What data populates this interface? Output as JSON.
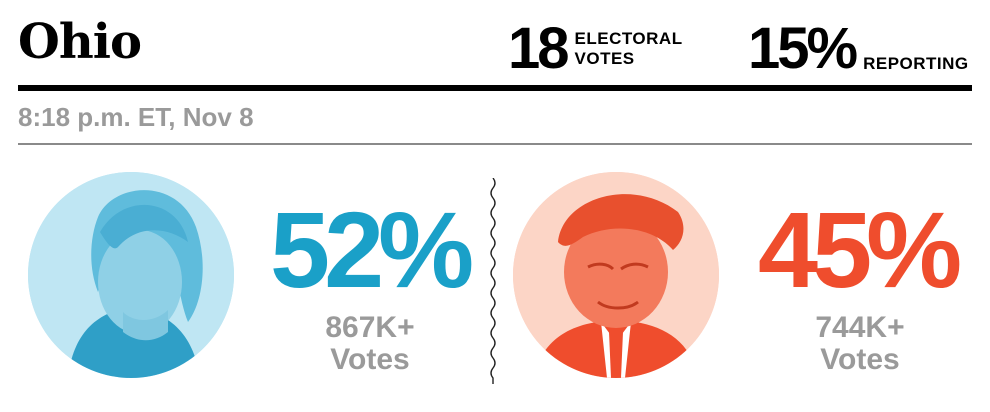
{
  "header": {
    "state": "Ohio",
    "electoral_count": "18",
    "electoral_label_line1": "ELECTORAL",
    "electoral_label_line2": "VOTES",
    "reporting_pct": "15%",
    "reporting_label": "REPORTING"
  },
  "timestamp": "8:18 p.m. ET, Nov 8",
  "candidates": [
    {
      "percent": "52%",
      "votes_line1": "867K+",
      "votes_line2": "Votes",
      "color": "#1aa0c8",
      "portrait_bg": "#b8e3f1"
    },
    {
      "percent": "45%",
      "votes_line1": "744K+",
      "votes_line2": "Votes",
      "color": "#ef4d2d",
      "portrait_bg": "#fbd2c3"
    }
  ]
}
